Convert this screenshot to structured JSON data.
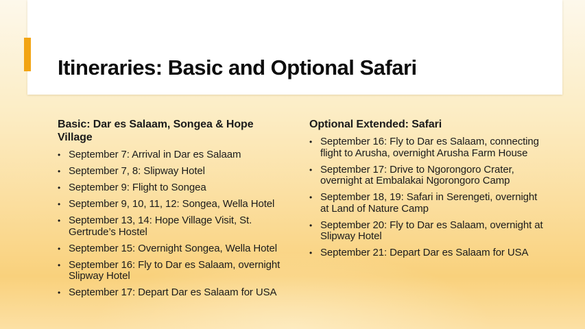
{
  "slide": {
    "title": "Itineraries: Basic and Optional Safari",
    "bullet_glyph": "•",
    "colors": {
      "accent": "#F2A413",
      "title_color": "#0D0D0D",
      "text_color": "#1B1B1B",
      "card_background": "#FFFFFF",
      "background_top": "#FDF8EB",
      "background_upper": "#FCEDC5",
      "background_mid": "#FBDE9E",
      "background_deep": "#F9D17C",
      "background_bottom": "#FCE0A4"
    },
    "columns": [
      {
        "heading": "Basic: Dar es Salaam, Songea & Hope Village",
        "bullets": [
          "September 7: Arrival in Dar es Salaam",
          "September 7, 8: Slipway Hotel",
          "September 9: Flight to Songea",
          "September 9, 10, 11, 12: Songea, Wella Hotel",
          "September 13, 14: Hope Village Visit, St. Gertrude’s Hostel",
          "September 15: Overnight Songea, Wella Hotel",
          "September 16: Fly to Dar es Salaam, overnight Slipway Hotel",
          "September 17: Depart Dar es Salaam for USA"
        ]
      },
      {
        "heading": "Optional Extended: Safari",
        "bullets": [
          "September 16: Fly to Dar es Salaam, connecting flight to Arusha, overnight Arusha Farm House",
          "September 17: Drive to Ngorongoro Crater, overnight at Embalakai Ngorongoro Camp",
          "September 18, 19: Safari in Serengeti, overnight at Land of Nature Camp",
          "September 20: Fly to Dar es Salaam, overnight at Slipway Hotel",
          "September 21: Depart Dar es Salaam for USA"
        ]
      }
    ]
  }
}
